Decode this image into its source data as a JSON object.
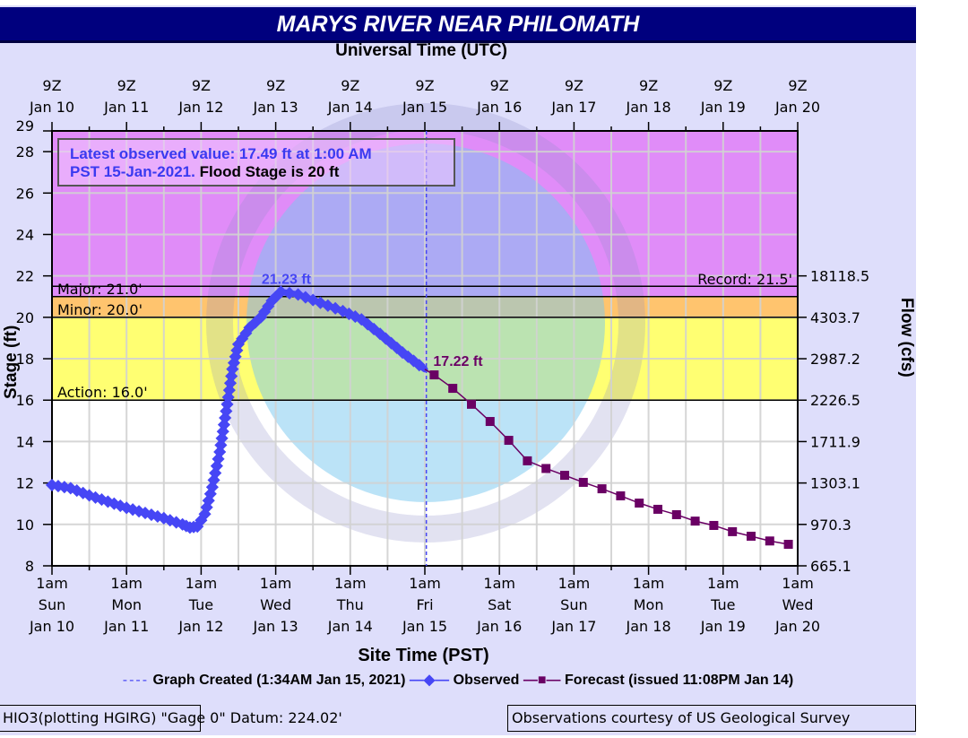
{
  "title": "MARYS RIVER NEAR PHILOMATH",
  "colors": {
    "major": "#e08cf8",
    "moderate": "#ffc46e",
    "minor": "#ffff72",
    "observed": "#4646f5",
    "forecast": "#6a0064",
    "titlebar": "#00007e"
  },
  "annotation": {
    "observed_text_1": "Latest observed value: 17.49 ft at 1:00 AM",
    "observed_text_2": "PST 15-Jan-2021.",
    "flood_text": "Flood Stage is 20 ft"
  },
  "legend": {
    "graph_created": "Graph Created (1:34AM Jan 15, 2021)",
    "observed": "Observed",
    "forecast": "Forecast (issued 11:08PM Jan 14)"
  },
  "footer": {
    "left": "HIO3(plotting HGIRG) \"Gage 0\" Datum: 224.02'",
    "right": "Observations courtesy of US Geological Survey"
  },
  "chart_data": {
    "type": "line",
    "title": "MARYS RIVER NEAR PHILOMATH",
    "top_xlabel": "Universal Time (UTC)",
    "xlabel": "Site Time (PST)",
    "ylabel": "Stage (ft)",
    "y2label": "Flow (cfs)",
    "x_units": "days since 1am PST Sun Jan 10, 2021",
    "xlim": [
      0,
      10
    ],
    "ylim": [
      8,
      29
    ],
    "yticks": [
      8,
      10,
      12,
      14,
      16,
      18,
      20,
      22,
      24,
      26,
      28,
      29
    ],
    "y2ticks": [
      {
        "stage": 22,
        "label": "18118.5"
      },
      {
        "stage": 20,
        "label": "4303.7"
      },
      {
        "stage": 18,
        "label": "2987.2"
      },
      {
        "stage": 16,
        "label": "2226.5"
      },
      {
        "stage": 14,
        "label": "1711.9"
      },
      {
        "stage": 12,
        "label": "1303.1"
      },
      {
        "stage": 10,
        "label": "970.3"
      },
      {
        "stage": 8,
        "label": "665.1"
      }
    ],
    "top_ticks": [
      [
        "9Z",
        "Jan 10"
      ],
      [
        "9Z",
        "Jan 11"
      ],
      [
        "9Z",
        "Jan 12"
      ],
      [
        "9Z",
        "Jan 13"
      ],
      [
        "9Z",
        "Jan 14"
      ],
      [
        "9Z",
        "Jan 15"
      ],
      [
        "9Z",
        "Jan 16"
      ],
      [
        "9Z",
        "Jan 17"
      ],
      [
        "9Z",
        "Jan 18"
      ],
      [
        "9Z",
        "Jan 19"
      ],
      [
        "9Z",
        "Jan 20"
      ]
    ],
    "bottom_ticks": [
      [
        "1am",
        "Sun",
        "Jan 10"
      ],
      [
        "1am",
        "Mon",
        "Jan 11"
      ],
      [
        "1am",
        "Tue",
        "Jan 12"
      ],
      [
        "1am",
        "Wed",
        "Jan 13"
      ],
      [
        "1am",
        "Thu",
        "Jan 14"
      ],
      [
        "1am",
        "Fri",
        "Jan 15"
      ],
      [
        "1am",
        "Sat",
        "Jan 16"
      ],
      [
        "1am",
        "Sun",
        "Jan 17"
      ],
      [
        "1am",
        "Mon",
        "Jan 18"
      ],
      [
        "1am",
        "Tue",
        "Jan 19"
      ],
      [
        "1am",
        "Wed",
        "Jan 20"
      ]
    ],
    "thresholds": [
      {
        "name": "Action",
        "value": 16.0,
        "label": "Action: 16.0'"
      },
      {
        "name": "Minor",
        "value": 20.0,
        "label": "Minor: 20.0'"
      },
      {
        "name": "Major",
        "value": 21.0,
        "label": "Major: 21.0'"
      },
      {
        "name": "Record",
        "value": 21.5,
        "label": "Record: 21.5'"
      }
    ],
    "graph_created_x": 5.02,
    "peak_label": {
      "x": 3.07,
      "y": 21.23,
      "text": "21.23 ft"
    },
    "forecast_label": {
      "x": 5.125,
      "y": 17.22,
      "text": "17.22 ft"
    },
    "series": [
      {
        "name": "Observed",
        "x": [
          0,
          0.25,
          0.5,
          0.75,
          1.0,
          1.25,
          1.5,
          1.75,
          1.85,
          1.95,
          2.05,
          2.15,
          2.25,
          2.35,
          2.42,
          2.5,
          2.65,
          2.8,
          2.95,
          3.07,
          3.3,
          3.6,
          3.9,
          4.15,
          4.4,
          4.7,
          5.0
        ],
        "y": [
          11.9,
          11.75,
          11.4,
          11.1,
          10.8,
          10.55,
          10.3,
          10.0,
          9.85,
          9.9,
          10.5,
          11.8,
          13.5,
          15.8,
          17.5,
          18.7,
          19.5,
          20.0,
          20.8,
          21.23,
          21.1,
          20.7,
          20.3,
          19.9,
          19.2,
          18.3,
          17.49
        ]
      },
      {
        "name": "Forecast",
        "x": [
          5.125,
          5.375,
          5.625,
          5.875,
          6.125,
          6.375,
          6.625,
          6.875,
          7.125,
          7.375,
          7.625,
          7.875,
          8.125,
          8.375,
          8.625,
          8.875,
          9.125,
          9.375,
          9.625,
          9.875
        ],
        "y": [
          17.22,
          16.57,
          15.8,
          14.97,
          14.06,
          13.07,
          12.7,
          12.37,
          12.03,
          11.72,
          11.38,
          11.03,
          10.73,
          10.47,
          10.16,
          9.95,
          9.65,
          9.43,
          9.2,
          9.04
        ]
      }
    ]
  }
}
